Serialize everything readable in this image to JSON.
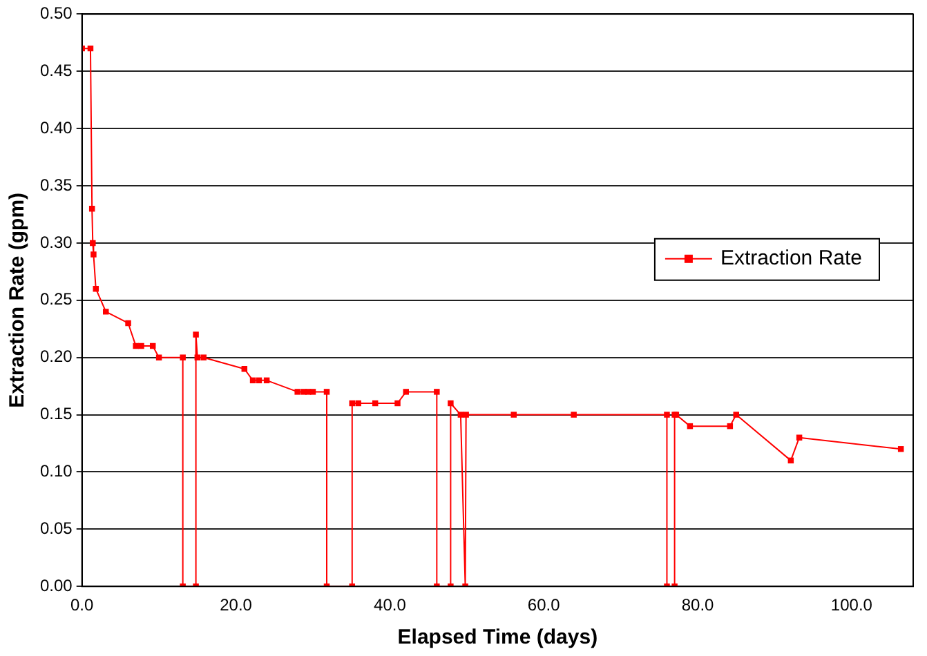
{
  "chart_data": {
    "type": "line",
    "xlabel": "Elapsed Time (days)",
    "ylabel": "Extraction Rate (gpm)",
    "xlim": [
      0,
      108
    ],
    "xticks": [
      {
        "value": 0,
        "label": "0.0"
      },
      {
        "value": 20,
        "label": "20.0"
      },
      {
        "value": 40,
        "label": "40.0"
      },
      {
        "value": 60,
        "label": "60.0"
      },
      {
        "value": 80,
        "label": "80.0"
      },
      {
        "value": 100,
        "label": "100.0"
      }
    ],
    "ylim": [
      0,
      0.5
    ],
    "yticks": [
      {
        "value": 0,
        "label": "0.00"
      },
      {
        "value": 0.05,
        "label": "0.05"
      },
      {
        "value": 0.1,
        "label": "0.10"
      },
      {
        "value": 0.15,
        "label": "0.15"
      },
      {
        "value": 0.2,
        "label": "0.20"
      },
      {
        "value": 0.25,
        "label": "0.25"
      },
      {
        "value": 0.3,
        "label": "0.30"
      },
      {
        "value": 0.35,
        "label": "0.35"
      },
      {
        "value": 0.4,
        "label": "0.40"
      },
      {
        "value": 0.45,
        "label": "0.45"
      },
      {
        "value": 0.5,
        "label": "0.50"
      }
    ],
    "grid": "y",
    "legend": "right",
    "marker": "square",
    "line_style": "solid",
    "series": [
      {
        "name": "Extraction Rate",
        "color": "#ff0000",
        "x": [
          0,
          1.1,
          1.3,
          1.4,
          1.5,
          1.8,
          3.1,
          6.0,
          7.0,
          7.7,
          9.2,
          10.0,
          13.1,
          13.1,
          14.8,
          14.8,
          15.0,
          15.8,
          21.1,
          22.2,
          23.0,
          24.0,
          28.0,
          28.8,
          29.4,
          30.0,
          31.8,
          31.8,
          35.1,
          35.1,
          35.9,
          38.1,
          41.0,
          42.1,
          46.1,
          46.1,
          47.9,
          47.9,
          49.2,
          49.8,
          49.9,
          56.1,
          63.9,
          76.0,
          76.0,
          77.0,
          77.0,
          77.2,
          79.0,
          84.2,
          85.0,
          92.1,
          93.2,
          106.4
        ],
        "values": [
          0.47,
          0.47,
          0.33,
          0.3,
          0.29,
          0.26,
          0.24,
          0.23,
          0.21,
          0.21,
          0.21,
          0.2,
          0.2,
          0,
          0,
          0.22,
          0.2,
          0.2,
          0.19,
          0.18,
          0.18,
          0.18,
          0.17,
          0.17,
          0.17,
          0.17,
          0.17,
          0,
          0,
          0.16,
          0.16,
          0.16,
          0.16,
          0.17,
          0.17,
          0,
          0,
          0.16,
          0.15,
          0,
          0.15,
          0.15,
          0.15,
          0.15,
          0,
          0,
          0.15,
          0.15,
          0.14,
          0.14,
          0.15,
          0.11,
          0.13,
          0.12
        ]
      }
    ]
  }
}
